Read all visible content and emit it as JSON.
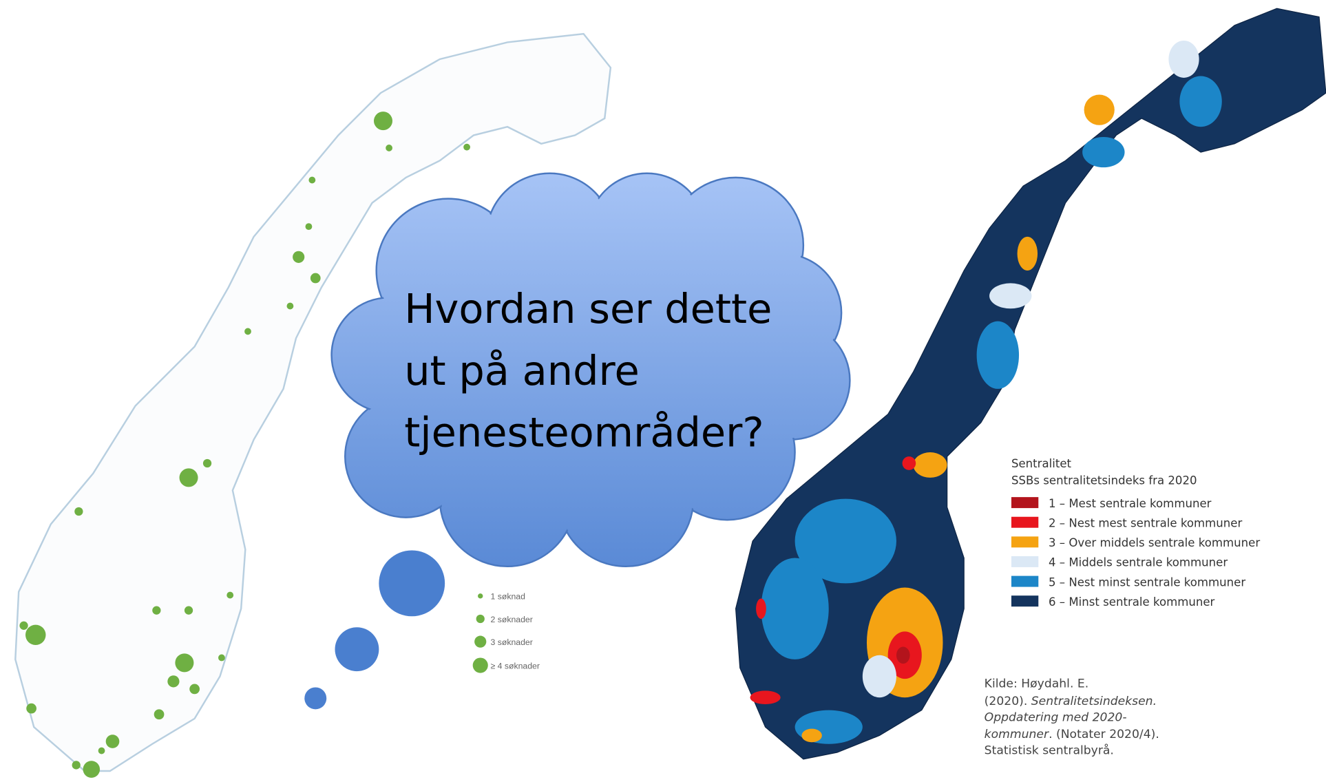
{
  "bubble": {
    "lines": [
      "Hvordan ser dette",
      "ut på andre",
      "tjenesteområder?"
    ]
  },
  "left_legend": [
    "1 søknad",
    "2 søknader",
    "3 søknader",
    "≥ 4 søknader"
  ],
  "right_legend": {
    "title": "Sentralitet",
    "subtitle": "SSBs sentralitetsindeks fra 2020",
    "items": [
      {
        "label": "1 – Mest sentrale kommuner",
        "color": "#b3141c"
      },
      {
        "label": "2 – Nest mest sentrale kommuner",
        "color": "#e8161e"
      },
      {
        "label": "3 – Over middels sentrale kommuner",
        "color": "#f5a312"
      },
      {
        "label": "4 – Middels sentrale kommuner",
        "color": "#dbe8f5"
      },
      {
        "label": "5 – Nest minst sentrale kommuner",
        "color": "#1c86c8"
      },
      {
        "label": "6 – Minst sentrale kommuner",
        "color": "#14345e"
      }
    ]
  },
  "source": {
    "line1": "Kilde: Høydahl. E.",
    "line2a": "(2020). ",
    "line2b": "Sentralitetsindeksen.",
    "line3": "Oppdatering  med 2020-",
    "line4a": "kommuner",
    "line4b": ". (Notater  2020/4).",
    "line5": "Statistisk  sentralbyrå."
  }
}
